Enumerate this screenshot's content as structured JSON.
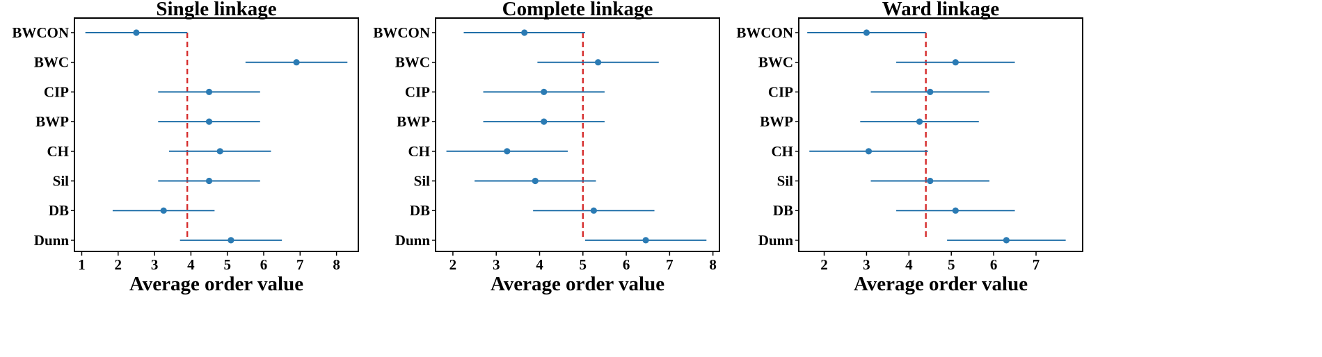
{
  "chart_data": [
    {
      "type": "errorbar",
      "title": "Single linkage",
      "xlabel": "Average order value",
      "ylabel": "",
      "categories": [
        "BWCON",
        "BWC",
        "CIP",
        "BWP",
        "CH",
        "Sil",
        "DB",
        "Dunn"
      ],
      "means": [
        2.5,
        6.9,
        4.5,
        4.5,
        4.8,
        4.5,
        3.25,
        5.1
      ],
      "lower": [
        1.1,
        5.5,
        3.1,
        3.1,
        3.4,
        3.1,
        1.85,
        3.7
      ],
      "upper": [
        3.9,
        8.3,
        5.9,
        5.9,
        6.2,
        5.9,
        4.65,
        6.5
      ],
      "reference_line": 3.9,
      "xlim": [
        0.8,
        8.6
      ],
      "xticks": [
        "1",
        "2",
        "3",
        "4",
        "5",
        "6",
        "7",
        "8"
      ],
      "xtick_values": [
        1,
        2,
        3,
        4,
        5,
        6,
        7,
        8
      ]
    },
    {
      "type": "errorbar",
      "title": "Complete linkage",
      "xlabel": "Average order value",
      "ylabel": "",
      "categories": [
        "BWCON",
        "BWC",
        "CIP",
        "BWP",
        "CH",
        "Sil",
        "DB",
        "Dunn"
      ],
      "means": [
        3.65,
        5.35,
        4.1,
        4.1,
        3.25,
        3.9,
        5.25,
        6.45
      ],
      "lower": [
        2.25,
        3.95,
        2.7,
        2.7,
        1.85,
        2.5,
        3.85,
        5.05
      ],
      "upper": [
        5.05,
        6.75,
        5.5,
        5.5,
        4.65,
        5.3,
        6.65,
        7.85
      ],
      "reference_line": 5.0,
      "xlim": [
        1.6,
        8.15
      ],
      "xticks": [
        "2",
        "3",
        "4",
        "5",
        "6",
        "7",
        "8"
      ],
      "xtick_values": [
        2,
        3,
        4,
        5,
        6,
        7,
        8
      ]
    },
    {
      "type": "errorbar",
      "title": "Ward linkage",
      "xlabel": "Average order value",
      "ylabel": "",
      "categories": [
        "BWCON",
        "BWC",
        "CIP",
        "BWP",
        "CH",
        "Sil",
        "DB",
        "Dunn"
      ],
      "means": [
        3.0,
        5.1,
        4.5,
        4.25,
        3.05,
        4.5,
        5.1,
        6.3
      ],
      "lower": [
        1.6,
        3.7,
        3.1,
        2.85,
        1.65,
        3.1,
        3.7,
        4.9
      ],
      "upper": [
        4.4,
        6.5,
        5.9,
        5.65,
        4.45,
        5.9,
        6.5,
        7.7
      ],
      "reference_line": 4.4,
      "xlim": [
        1.4,
        8.1
      ],
      "xticks": [
        "2",
        "3",
        "4",
        "5",
        "6",
        "7"
      ],
      "xtick_values": [
        2,
        3,
        4,
        5,
        6,
        7
      ]
    }
  ],
  "colors": {
    "errorbar": "#1f6fa8",
    "marker": "#2b7bb4",
    "reference_line": "#d62c2c",
    "axes": "#000000"
  }
}
